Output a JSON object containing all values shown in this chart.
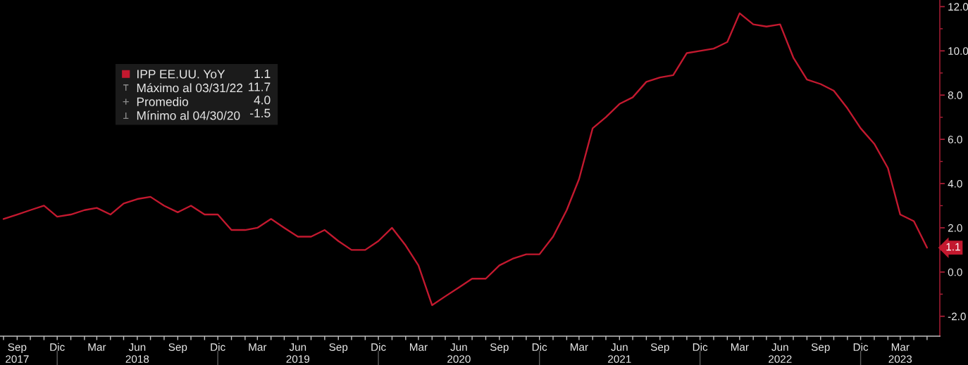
{
  "chart_data": {
    "type": "line",
    "x": [
      "2017-08",
      "2017-09",
      "2017-10",
      "2017-11",
      "2017-12",
      "2018-01",
      "2018-02",
      "2018-03",
      "2018-04",
      "2018-05",
      "2018-06",
      "2018-07",
      "2018-08",
      "2018-09",
      "2018-10",
      "2018-11",
      "2018-12",
      "2019-01",
      "2019-02",
      "2019-03",
      "2019-04",
      "2019-05",
      "2019-06",
      "2019-07",
      "2019-08",
      "2019-09",
      "2019-10",
      "2019-11",
      "2019-12",
      "2020-01",
      "2020-02",
      "2020-03",
      "2020-04",
      "2020-05",
      "2020-06",
      "2020-07",
      "2020-08",
      "2020-09",
      "2020-10",
      "2020-11",
      "2020-12",
      "2021-01",
      "2021-02",
      "2021-03",
      "2021-04",
      "2021-05",
      "2021-06",
      "2021-07",
      "2021-08",
      "2021-09",
      "2021-10",
      "2021-11",
      "2021-12",
      "2022-01",
      "2022-02",
      "2022-03",
      "2022-04",
      "2022-05",
      "2022-06",
      "2022-07",
      "2022-08",
      "2022-09",
      "2022-10",
      "2022-11",
      "2022-12",
      "2023-01",
      "2023-02",
      "2023-03",
      "2023-04",
      "2023-05"
    ],
    "series": [
      {
        "name": "IPP EE.UU. YoY",
        "color": "#c3192f",
        "values": [
          2.4,
          2.6,
          2.8,
          3.0,
          2.5,
          2.6,
          2.8,
          2.9,
          2.6,
          3.1,
          3.3,
          3.4,
          3.0,
          2.7,
          3.0,
          2.6,
          2.6,
          1.9,
          1.9,
          2.0,
          2.4,
          2.0,
          1.6,
          1.6,
          1.9,
          1.4,
          1.0,
          1.0,
          1.4,
          2.0,
          1.2,
          0.3,
          -1.5,
          -1.1,
          -0.7,
          -0.3,
          -0.3,
          0.3,
          0.6,
          0.8,
          0.8,
          1.6,
          2.8,
          4.2,
          6.5,
          7.0,
          7.6,
          7.9,
          8.6,
          8.8,
          8.9,
          9.9,
          10.0,
          10.1,
          10.4,
          11.7,
          11.2,
          11.1,
          11.2,
          9.7,
          8.7,
          8.5,
          8.2,
          7.4,
          6.5,
          5.8,
          4.7,
          2.6,
          2.3,
          1.1
        ],
        "value_labels": [
          null,
          null,
          null,
          null,
          null,
          null,
          null,
          null,
          null,
          null,
          null,
          null,
          null,
          null,
          null,
          null,
          null,
          null,
          null,
          null,
          null,
          null,
          null,
          null,
          null,
          null,
          null,
          null,
          null,
          null,
          null,
          null,
          null,
          null,
          null,
          null,
          null,
          null,
          null,
          null,
          null,
          null,
          null,
          null,
          null,
          null,
          null,
          null,
          null,
          null,
          null,
          null,
          null,
          null,
          null,
          null,
          null,
          null,
          null,
          null,
          null,
          null,
          null,
          null,
          null,
          null,
          null,
          null,
          null,
          "1.1"
        ]
      }
    ],
    "xlim": [
      "2017-07-24",
      "2023-05-30"
    ],
    "xticks": [
      {
        "value": "2017-08",
        "label": null
      },
      {
        "value": "2017-09",
        "label": "Sep\n2017"
      },
      {
        "value": "2017-10",
        "label": null
      },
      {
        "value": "2017-11",
        "label": null
      },
      {
        "value": "2017-12",
        "label": "Dic"
      },
      {
        "value": "2018-01",
        "label": null
      },
      {
        "value": "2018-02",
        "label": null
      },
      {
        "value": "2018-03",
        "label": "Mar"
      },
      {
        "value": "2018-04",
        "label": null
      },
      {
        "value": "2018-05",
        "label": null
      },
      {
        "value": "2018-06",
        "label": "Jun\n2018"
      },
      {
        "value": "2018-07",
        "label": null
      },
      {
        "value": "2018-08",
        "label": null
      },
      {
        "value": "2018-09",
        "label": "Sep"
      },
      {
        "value": "2018-10",
        "label": null
      },
      {
        "value": "2018-11",
        "label": null
      },
      {
        "value": "2018-12",
        "label": "Dic"
      },
      {
        "value": "2019-01",
        "label": null
      },
      {
        "value": "2019-02",
        "label": null
      },
      {
        "value": "2019-03",
        "label": "Mar"
      },
      {
        "value": "2019-04",
        "label": null
      },
      {
        "value": "2019-05",
        "label": null
      },
      {
        "value": "2019-06",
        "label": "Jun\n2019"
      },
      {
        "value": "2019-07",
        "label": null
      },
      {
        "value": "2019-08",
        "label": null
      },
      {
        "value": "2019-09",
        "label": "Sep"
      },
      {
        "value": "2019-10",
        "label": null
      },
      {
        "value": "2019-11",
        "label": null
      },
      {
        "value": "2019-12",
        "label": "Dic"
      },
      {
        "value": "2020-01",
        "label": null
      },
      {
        "value": "2020-02",
        "label": null
      },
      {
        "value": "2020-03",
        "label": "Mar"
      },
      {
        "value": "2020-04",
        "label": null
      },
      {
        "value": "2020-05",
        "label": null
      },
      {
        "value": "2020-06",
        "label": "Jun\n2020"
      },
      {
        "value": "2020-07",
        "label": null
      },
      {
        "value": "2020-08",
        "label": null
      },
      {
        "value": "2020-09",
        "label": "Sep"
      },
      {
        "value": "2020-10",
        "label": null
      },
      {
        "value": "2020-11",
        "label": null
      },
      {
        "value": "2020-12",
        "label": "Dic"
      },
      {
        "value": "2021-01",
        "label": null
      },
      {
        "value": "2021-02",
        "label": null
      },
      {
        "value": "2021-03",
        "label": "Mar"
      },
      {
        "value": "2021-04",
        "label": null
      },
      {
        "value": "2021-05",
        "label": null
      },
      {
        "value": "2021-06",
        "label": "Jun\n2021"
      },
      {
        "value": "2021-07",
        "label": null
      },
      {
        "value": "2021-08",
        "label": null
      },
      {
        "value": "2021-09",
        "label": "Sep"
      },
      {
        "value": "2021-10",
        "label": null
      },
      {
        "value": "2021-11",
        "label": null
      },
      {
        "value": "2021-12",
        "label": "Dic"
      },
      {
        "value": "2022-01",
        "label": null
      },
      {
        "value": "2022-02",
        "label": null
      },
      {
        "value": "2022-03",
        "label": "Mar"
      },
      {
        "value": "2022-04",
        "label": null
      },
      {
        "value": "2022-05",
        "label": null
      },
      {
        "value": "2022-06",
        "label": "Jun\n2022"
      },
      {
        "value": "2022-07",
        "label": null
      },
      {
        "value": "2022-08",
        "label": null
      },
      {
        "value": "2022-09",
        "label": "Sep"
      },
      {
        "value": "2022-10",
        "label": null
      },
      {
        "value": "2022-11",
        "label": null
      },
      {
        "value": "2022-12",
        "label": "Dic"
      },
      {
        "value": "2023-01",
        "label": null
      },
      {
        "value": "2023-02",
        "label": null
      },
      {
        "value": "2023-03",
        "label": "Mar\n2023"
      },
      {
        "value": "2023-04",
        "label": null
      },
      {
        "value": "2023-05",
        "label": null
      }
    ],
    "ylim": [
      -2.9,
      12.3
    ],
    "yticks": [
      {
        "value": -2,
        "label": "-2.0"
      },
      {
        "value": -1,
        "label": null
      },
      {
        "value": 0,
        "label": "0.0"
      },
      {
        "value": 1,
        "label": null
      },
      {
        "value": 2,
        "label": "2.0"
      },
      {
        "value": 3,
        "label": null
      },
      {
        "value": 4,
        "label": "4.0"
      },
      {
        "value": 5,
        "label": null
      },
      {
        "value": 6,
        "label": "6.0"
      },
      {
        "value": 7,
        "label": null
      },
      {
        "value": 8,
        "label": "8.0"
      },
      {
        "value": 9,
        "label": null
      },
      {
        "value": 10,
        "label": "10.0"
      },
      {
        "value": 11,
        "label": null
      },
      {
        "value": 12,
        "label": "12.0"
      }
    ],
    "legend": "top left",
    "annotations": [
      "Máximo al 03/31/22 11.7",
      "Promedio 4.0",
      "Mínimo al 04/30/20 -1.5"
    ]
  }
}
